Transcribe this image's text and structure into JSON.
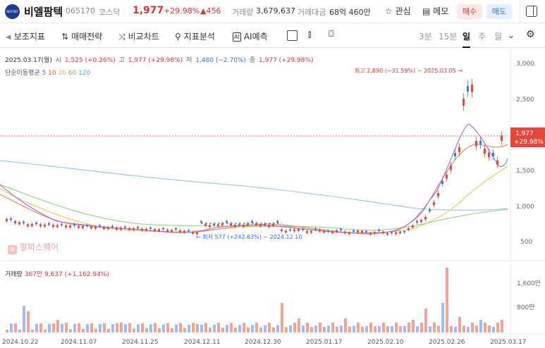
{
  "header": {
    "logo_text": "NEXTBIT",
    "name": "비엘팜텍",
    "code": "065170",
    "market": "코스닥",
    "price": "1,977",
    "change_rate": "+29.98%",
    "change_amount": "▲456",
    "volume_label": "거래량",
    "volume": "3,679,637",
    "amount_label": "거래대금",
    "amount": "68억 460만",
    "favorite": "☆ 관심",
    "memo": "▤ 메모",
    "buy": "매수",
    "sell": "매도"
  },
  "toolbar": {
    "items": [
      "보조지표",
      "매매전략",
      "비교차트",
      "지표분석",
      "AI예측"
    ],
    "icons": [
      "indicator-icon",
      "strategy-icon",
      "compare-icon",
      "analysis-icon",
      "ai-icon"
    ],
    "ai_badge": "AI",
    "periods": [
      "3분",
      "15분",
      "일",
      "주",
      "월"
    ],
    "active_period": "일"
  },
  "info": {
    "date": "2025.03.17(월)",
    "open_label": "시",
    "open": "1,525 (+0.26%)",
    "high_label": "고",
    "high": "1,977 (+29.98%)",
    "low_label": "저",
    "low": "1,480 (−2.70%)",
    "close_label": "종",
    "close": "1,977 (+29.98%)",
    "ma_label": "단순이동평균",
    "ma_periods": [
      "5",
      "10",
      "20",
      "60",
      "120"
    ],
    "ma_colors": [
      "#8a4fd8",
      "#e06a2f",
      "#e3b23c",
      "#6cbf5a",
      "#5aa6d8"
    ]
  },
  "watermark": {
    "icon": "α",
    "text": "알파스퀘어"
  },
  "volume_panel": {
    "title": "거래량",
    "value": "367만 9,637 (+1,162.94%)"
  },
  "chart_data": {
    "type": "candlestick",
    "dates_axis": [
      "2024.10.22",
      "2024.11.07",
      "2024.11.25",
      "2024.12.11",
      "2024.12.30",
      "2025.01.17",
      "2025.02.10",
      "2025.02.26",
      "2025.03.17"
    ],
    "price_axis": [
      "3,000",
      "2,500",
      "2,000",
      "1,500",
      "1,000",
      "500"
    ],
    "volume_axis": [
      "1,600만",
      "800만"
    ],
    "price_ylim": [
      50,
      3000
    ],
    "max_annotation": "최고 2,890 (−31.59%) ~ 2025.03.05 →",
    "min_annotation": "← 최저 577 (+242.63%) ~ 2024.12.10",
    "last_price_label": "1,977",
    "last_rate_label": "+29.98%",
    "max_price": 2890,
    "min_price": 577,
    "last_price": 1977,
    "up_color": "#e5483a",
    "down_color": "#3b78e0"
  }
}
